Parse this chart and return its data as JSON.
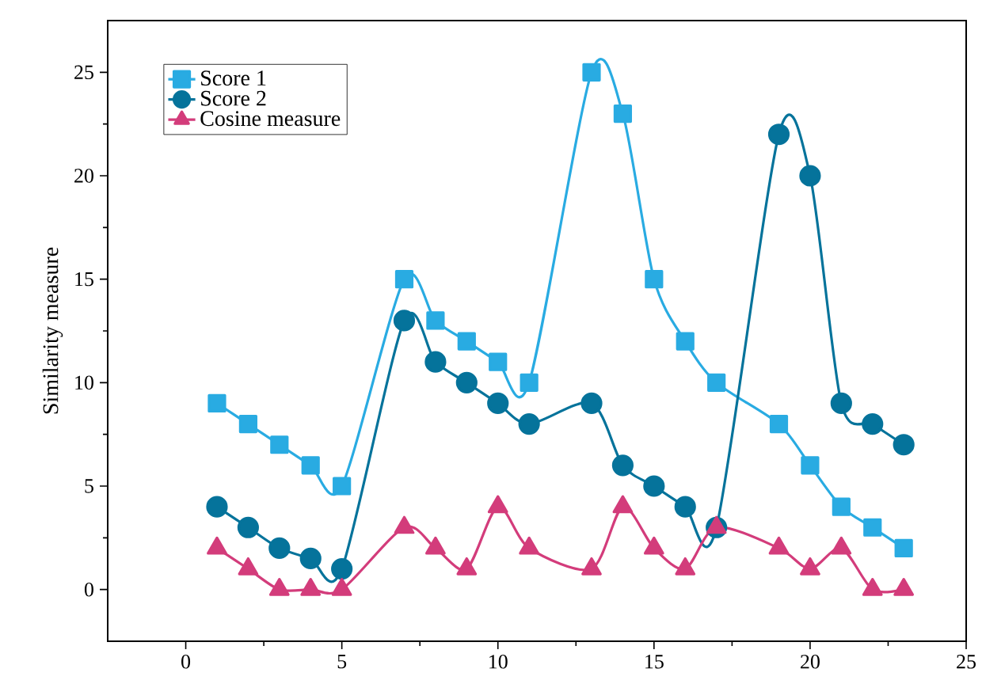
{
  "chart_data": {
    "type": "line",
    "ylabel": "Similarity measure",
    "xlim": [
      -2.5,
      25
    ],
    "xticks": [
      0,
      5,
      10,
      15,
      20,
      25
    ],
    "ylim": [
      -2.5,
      27.5
    ],
    "yticks": [
      0,
      5,
      10,
      15,
      20,
      25
    ],
    "grid": false,
    "legend": "top left",
    "series": [
      {
        "name": "Score 1",
        "color": "#29abe2",
        "marker": "square",
        "x": [
          1,
          2,
          3,
          4,
          5,
          7,
          8,
          9,
          10,
          11,
          13,
          14,
          15,
          16,
          17,
          19,
          20,
          21,
          22,
          23
        ],
        "values": [
          9,
          8,
          7,
          6,
          5,
          15,
          13,
          12,
          11,
          10,
          25,
          23,
          15,
          12,
          10,
          8,
          6,
          4,
          3,
          2
        ]
      },
      {
        "name": "Score 2",
        "color": "#05739b",
        "marker": "circle",
        "x": [
          1,
          2,
          3,
          4,
          5,
          7,
          8,
          9,
          10,
          11,
          13,
          14,
          15,
          16,
          17,
          19,
          20,
          21,
          22,
          23
        ],
        "values": [
          4,
          3,
          2,
          1.5,
          1,
          13,
          11,
          10,
          9,
          8,
          9,
          6,
          5,
          4,
          3,
          22,
          20,
          9,
          8,
          7
        ]
      },
      {
        "name": "Cosine measure",
        "color": "#d33c7b",
        "marker": "triangle",
        "x": [
          1,
          2,
          3,
          4,
          5,
          7,
          8,
          9,
          10,
          11,
          13,
          14,
          15,
          16,
          17,
          19,
          20,
          21,
          22,
          23
        ],
        "values": [
          2,
          1,
          0,
          0,
          0,
          3,
          2,
          1,
          4,
          2,
          1,
          4,
          2,
          1,
          3,
          2,
          1,
          2,
          0,
          0
        ]
      }
    ]
  }
}
